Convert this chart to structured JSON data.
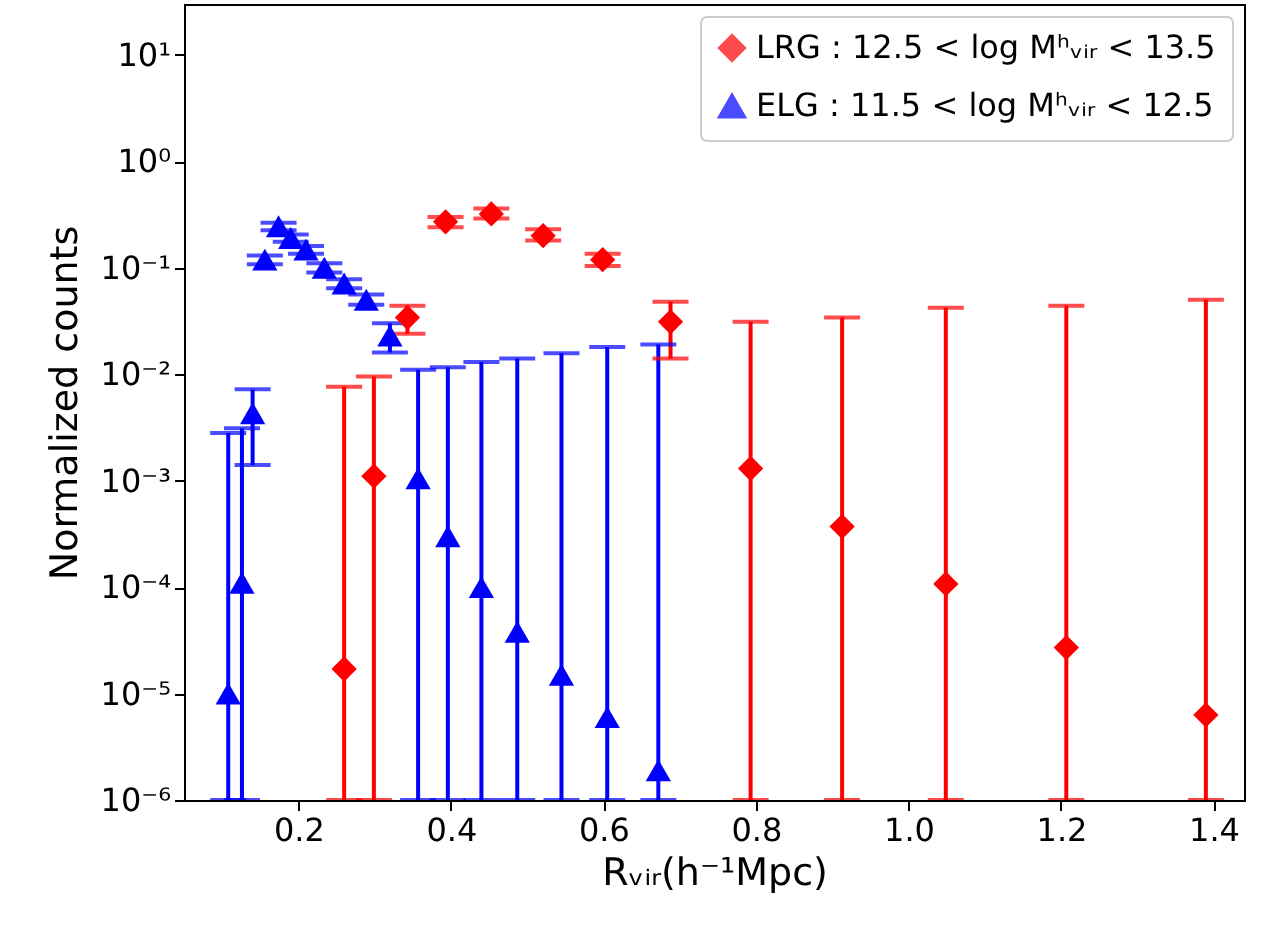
{
  "chart_data": {
    "type": "scatter",
    "xlabel": "Rᵥᵢᵣ(h⁻¹Mpc)",
    "ylabel": "Normalized counts",
    "log": "y",
    "legend": "top right",
    "grid": false,
    "xlim": [
      0.05,
      1.44
    ],
    "xticks": [
      {
        "value": 0.2,
        "label": "0.2"
      },
      {
        "value": 0.4,
        "label": "0.4"
      },
      {
        "value": 0.6,
        "label": "0.6"
      },
      {
        "value": 0.8,
        "label": "0.8"
      },
      {
        "value": 1.0,
        "label": "1.0"
      },
      {
        "value": 1.2,
        "label": "1.2"
      },
      {
        "value": 1.4,
        "label": "1.4"
      }
    ],
    "ylim": [
      1e-06,
      30
    ],
    "yticks": [
      {
        "value": 1e-06,
        "label": "10⁻⁶"
      },
      {
        "value": 1e-05,
        "label": "10⁻⁵"
      },
      {
        "value": 0.0001,
        "label": "10⁻⁴"
      },
      {
        "value": 0.001,
        "label": "10⁻³"
      },
      {
        "value": 0.01,
        "label": "10⁻²"
      },
      {
        "value": 0.1,
        "label": "10⁻¹"
      },
      {
        "value": 1,
        "label": "10⁰"
      },
      {
        "value": 10,
        "label": "10¹"
      }
    ],
    "series": [
      {
        "name": "LRG : 12.5 < log Mʰᵥᵢᵣ < 13.5",
        "color": "#ff0000",
        "marker": "diamond",
        "x": [
          0.26,
          0.299,
          0.343,
          0.393,
          0.453,
          0.521,
          0.599,
          0.688,
          0.793,
          0.913,
          1.049,
          1.207,
          1.39
        ],
        "values": [
          1.7e-05,
          0.0011,
          0.034,
          0.27,
          0.32,
          0.2,
          0.119,
          0.031,
          0.0013,
          0.00037,
          0.000107,
          2.7e-05,
          6.3e-06
        ],
        "errors": [
          [
            1e-06,
            0.0076
          ],
          [
            1e-06,
            0.0095
          ],
          [
            0.024,
            0.044
          ],
          [
            0.24,
            0.3
          ],
          [
            0.29,
            0.36
          ],
          [
            0.18,
            0.23
          ],
          [
            0.104,
            0.135
          ],
          [
            0.014,
            0.048
          ],
          [
            1e-06,
            0.031
          ],
          [
            1e-06,
            0.034
          ],
          [
            1e-06,
            0.042
          ],
          [
            1e-06,
            0.044
          ],
          [
            1e-06,
            0.05
          ]
        ]
      },
      {
        "name": "ELG : 11.5 < log Mʰᵥᵢᵣ < 12.5",
        "color": "#0000ff",
        "marker": "triangle",
        "x": [
          0.108,
          0.126,
          0.14,
          0.156,
          0.174,
          0.19,
          0.21,
          0.234,
          0.26,
          0.289,
          0.32,
          0.357,
          0.396,
          0.44,
          0.487,
          0.545,
          0.605,
          0.672
        ],
        "values": [
          1e-05,
          0.00011,
          0.0043,
          0.119,
          0.245,
          0.19,
          0.148,
          0.1,
          0.071,
          0.05,
          0.023,
          0.00105,
          0.0003,
          0.0001,
          3.8e-05,
          1.5e-05,
          6e-06,
          1.9e-06
        ],
        "errors": [
          [
            1e-06,
            0.0028
          ],
          [
            1e-06,
            0.0031
          ],
          [
            0.0014,
            0.0072
          ],
          [
            0.108,
            0.13
          ],
          [
            0.225,
            0.265
          ],
          [
            0.175,
            0.205
          ],
          [
            0.135,
            0.16
          ],
          [
            0.09,
            0.11
          ],
          [
            0.064,
            0.078
          ],
          [
            0.045,
            0.056
          ],
          [
            0.016,
            0.03
          ],
          [
            1e-06,
            0.011
          ],
          [
            1e-06,
            0.0116
          ],
          [
            1e-06,
            0.013
          ],
          [
            1e-06,
            0.014
          ],
          [
            1e-06,
            0.0157
          ],
          [
            1e-06,
            0.018
          ],
          [
            1e-06,
            0.019
          ]
        ]
      }
    ]
  }
}
